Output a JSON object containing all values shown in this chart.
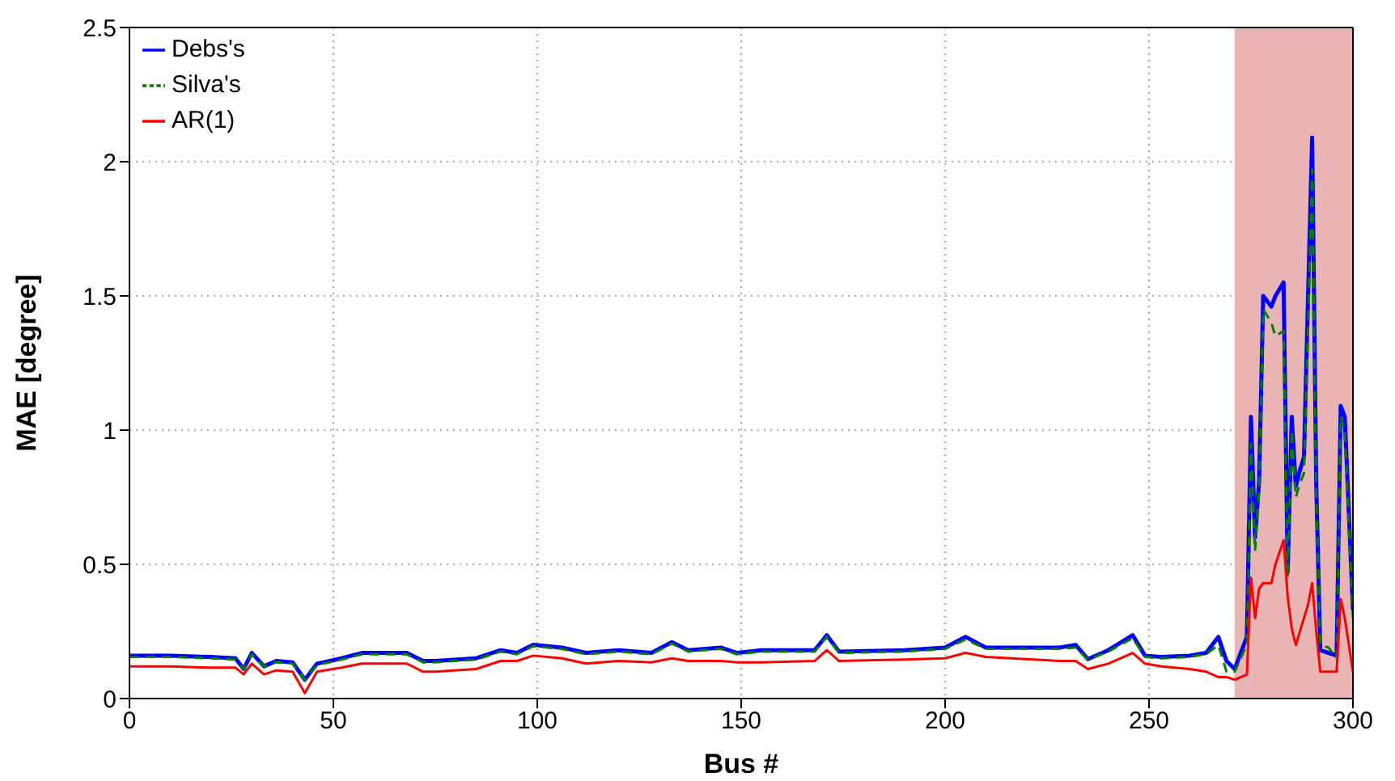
{
  "chart_data": {
    "type": "line",
    "xlabel": "Bus #",
    "ylabel": "MAE [degree]",
    "x": [
      0,
      10,
      20,
      26,
      28,
      30,
      33,
      36,
      40,
      43,
      46,
      52,
      57,
      68,
      72,
      75,
      85,
      91,
      95,
      99,
      106,
      112,
      120,
      128,
      133,
      137,
      145,
      149,
      155,
      168,
      171,
      174,
      190,
      200,
      205,
      210,
      228,
      232,
      235,
      240,
      246,
      249,
      253,
      260,
      264,
      267,
      269,
      271,
      274,
      275,
      276,
      277,
      278,
      280,
      281,
      283,
      284,
      285,
      286,
      287,
      288,
      289,
      290,
      291,
      292,
      294,
      296,
      297,
      298,
      300
    ],
    "series": [
      {
        "name": "Debs's",
        "color": "#0000ff",
        "line_style": "solid",
        "values": [
          0.16,
          0.16,
          0.155,
          0.15,
          0.11,
          0.17,
          0.12,
          0.14,
          0.135,
          0.07,
          0.13,
          0.15,
          0.17,
          0.17,
          0.14,
          0.14,
          0.15,
          0.18,
          0.17,
          0.2,
          0.19,
          0.17,
          0.18,
          0.17,
          0.21,
          0.18,
          0.19,
          0.17,
          0.18,
          0.18,
          0.236,
          0.175,
          0.18,
          0.19,
          0.23,
          0.19,
          0.19,
          0.2,
          0.147,
          0.18,
          0.236,
          0.16,
          0.155,
          0.16,
          0.17,
          0.23,
          0.14,
          0.11,
          0.23,
          1.05,
          0.6,
          0.81,
          1.5,
          1.46,
          1.5,
          1.55,
          0.47,
          1.05,
          0.79,
          0.85,
          0.9,
          1.5,
          2.09,
          0.8,
          0.18,
          0.17,
          0.16,
          1.09,
          1.05,
          0.33
        ]
      },
      {
        "name": "Silva's",
        "color": "#008000",
        "line_style": "dashed",
        "values": [
          0.155,
          0.155,
          0.15,
          0.145,
          0.11,
          0.165,
          0.12,
          0.135,
          0.13,
          0.07,
          0.125,
          0.145,
          0.165,
          0.165,
          0.135,
          0.135,
          0.145,
          0.175,
          0.165,
          0.195,
          0.185,
          0.165,
          0.175,
          0.165,
          0.205,
          0.175,
          0.185,
          0.165,
          0.175,
          0.175,
          0.23,
          0.17,
          0.175,
          0.185,
          0.22,
          0.185,
          0.185,
          0.19,
          0.145,
          0.175,
          0.225,
          0.155,
          0.15,
          0.155,
          0.165,
          0.2,
          0.1,
          0.1,
          0.2,
          0.95,
          0.55,
          0.78,
          1.45,
          1.4,
          1.35,
          1.37,
          0.45,
          1.0,
          0.75,
          0.8,
          0.84,
          1.4,
          1.97,
          0.75,
          0.2,
          0.19,
          0.15,
          1.05,
          1.0,
          0.3
        ]
      },
      {
        "name": "AR(1)",
        "color": "#ff0000",
        "line_style": "solid",
        "values": [
          0.12,
          0.12,
          0.115,
          0.115,
          0.09,
          0.13,
          0.09,
          0.105,
          0.1,
          0.02,
          0.1,
          0.115,
          0.13,
          0.13,
          0.1,
          0.1,
          0.11,
          0.14,
          0.14,
          0.16,
          0.15,
          0.13,
          0.14,
          0.135,
          0.15,
          0.14,
          0.14,
          0.135,
          0.135,
          0.14,
          0.18,
          0.14,
          0.145,
          0.15,
          0.17,
          0.155,
          0.14,
          0.14,
          0.11,
          0.13,
          0.17,
          0.13,
          0.12,
          0.11,
          0.1,
          0.08,
          0.08,
          0.07,
          0.09,
          0.45,
          0.3,
          0.41,
          0.43,
          0.43,
          0.5,
          0.59,
          0.38,
          0.26,
          0.2,
          0.25,
          0.3,
          0.35,
          0.43,
          0.25,
          0.1,
          0.1,
          0.1,
          0.37,
          0.3,
          0.1
        ]
      }
    ],
    "xlim": [
      0,
      300
    ],
    "xticks": [
      0,
      50,
      100,
      150,
      200,
      250,
      300
    ],
    "ylim": [
      0,
      2.5
    ],
    "yticks": [
      0,
      0.5,
      1,
      1.5,
      2,
      2.5
    ],
    "bands": [
      {
        "axis": "x",
        "from": 271,
        "to": 300,
        "color": "#e8b4b4"
      }
    ],
    "grid": true,
    "legend": "top left",
    "marker": "none"
  }
}
